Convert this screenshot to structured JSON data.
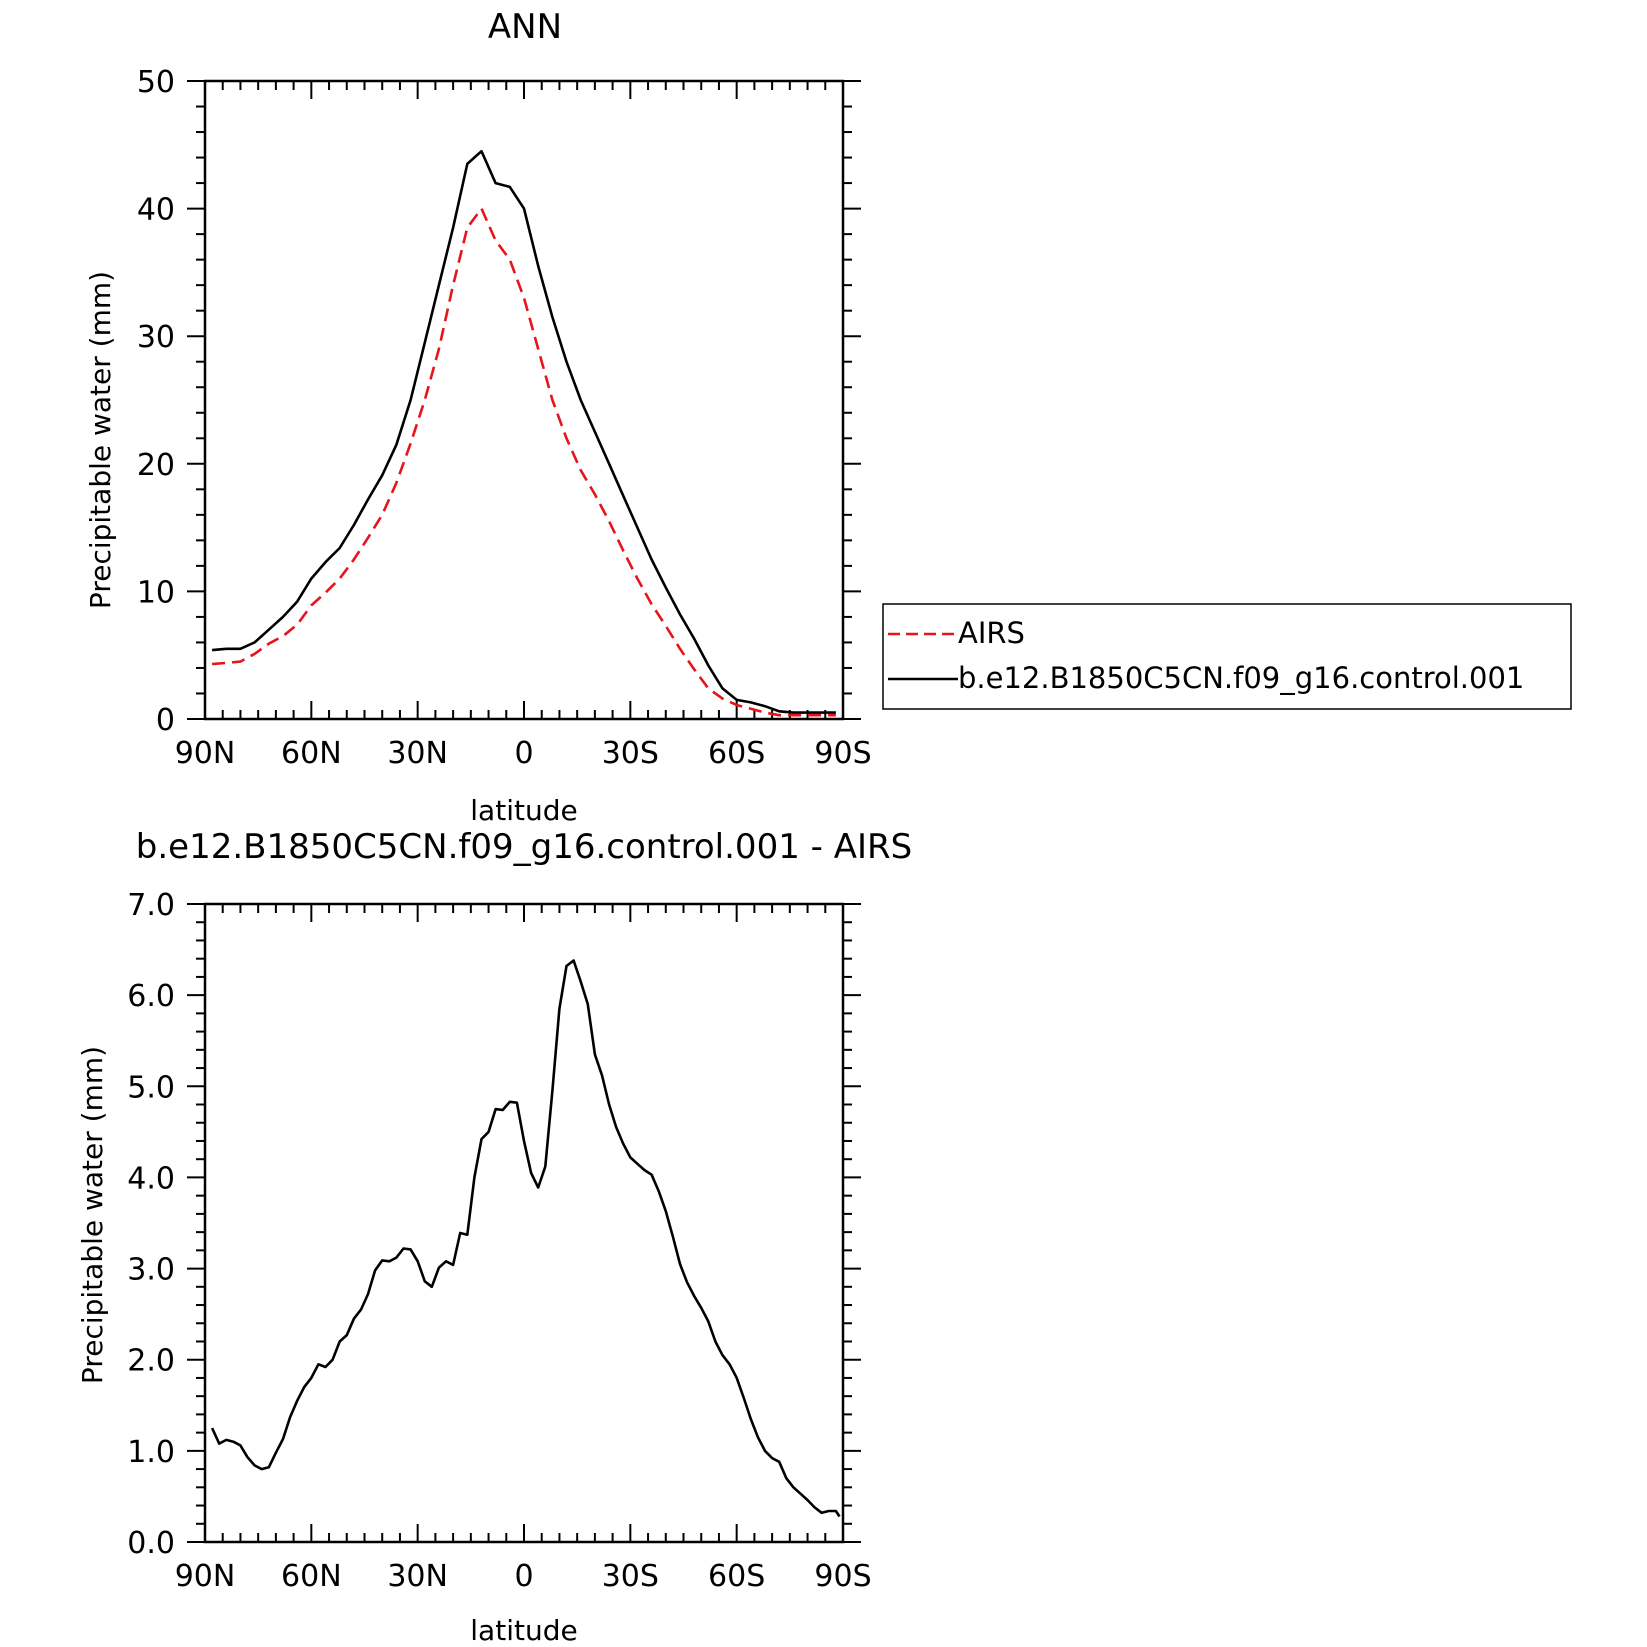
{
  "chart_data": [
    {
      "type": "line",
      "title": "ANN",
      "xlabel": "latitude",
      "ylabel": "Precipitable water (mm)",
      "xlim": [
        90,
        -90
      ],
      "ylim": [
        0,
        50
      ],
      "x_ticks": [
        {
          "value": 90,
          "label": "90N"
        },
        {
          "value": 60,
          "label": "60N"
        },
        {
          "value": 30,
          "label": "30N"
        },
        {
          "value": 0,
          "label": "0"
        },
        {
          "value": -30,
          "label": "30S"
        },
        {
          "value": -60,
          "label": "60S"
        },
        {
          "value": -90,
          "label": "90S"
        }
      ],
      "y_ticks": [
        {
          "value": 0,
          "label": "0"
        },
        {
          "value": 10,
          "label": "10"
        },
        {
          "value": 20,
          "label": "20"
        },
        {
          "value": 30,
          "label": "30"
        },
        {
          "value": 40,
          "label": "40"
        },
        {
          "value": 50,
          "label": "50"
        }
      ],
      "legend": {
        "placement": "right"
      },
      "x": [
        88,
        84,
        80,
        76,
        72,
        68,
        64,
        60,
        56,
        52,
        48,
        44,
        40,
        36,
        32,
        28,
        24,
        20,
        16,
        12,
        8,
        4,
        0,
        -4,
        -8,
        -12,
        -16,
        -20,
        -24,
        -28,
        -32,
        -36,
        -40,
        -44,
        -48,
        -52,
        -56,
        -60,
        -64,
        -68,
        -72,
        -76,
        -80,
        -84,
        -88
      ],
      "series": [
        {
          "name": "AIRS",
          "color": "#e8141c",
          "dash": "dashed",
          "values": [
            4.3,
            4.4,
            4.5,
            5.1,
            5.9,
            6.5,
            7.4,
            8.9,
            9.9,
            11.0,
            12.5,
            14.2,
            16.0,
            18.5,
            21.6,
            25.0,
            29.0,
            34.0,
            38.5,
            40.0,
            37.5,
            36.0,
            33.0,
            29.0,
            25.0,
            22.0,
            19.5,
            17.6,
            15.5,
            13.2,
            11.0,
            9.0,
            7.3,
            5.5,
            3.9,
            2.4,
            1.6,
            1.1,
            0.8,
            0.5,
            0.3,
            0.3,
            0.3,
            0.3,
            0.3
          ]
        },
        {
          "name": "b.e12.B1850C5CN.f09_g16.control.001",
          "color": "#000000",
          "dash": "solid",
          "values": [
            5.4,
            5.5,
            5.5,
            6.0,
            7.0,
            8.0,
            9.2,
            11.0,
            12.3,
            13.4,
            15.2,
            17.2,
            19.1,
            21.5,
            25.0,
            29.5,
            34.0,
            38.5,
            43.5,
            44.5,
            42.0,
            41.7,
            40.0,
            35.5,
            31.5,
            28.0,
            25.0,
            22.5,
            20.0,
            17.5,
            15.0,
            12.5,
            10.3,
            8.2,
            6.3,
            4.2,
            2.4,
            1.5,
            1.3,
            1.0,
            0.6,
            0.5,
            0.5,
            0.5,
            0.5
          ]
        }
      ]
    },
    {
      "type": "line",
      "title": "b.e12.B1850C5CN.f09_g16.control.001 - AIRS",
      "xlabel": "latitude",
      "ylabel": "Precipitable water (mm)",
      "xlim": [
        90,
        -90
      ],
      "ylim": [
        0,
        7
      ],
      "x_ticks": [
        {
          "value": 90,
          "label": "90N"
        },
        {
          "value": 60,
          "label": "60N"
        },
        {
          "value": 30,
          "label": "30N"
        },
        {
          "value": 0,
          "label": "0"
        },
        {
          "value": -30,
          "label": "30S"
        },
        {
          "value": -60,
          "label": "60S"
        },
        {
          "value": -90,
          "label": "90S"
        }
      ],
      "y_ticks": [
        {
          "value": 0,
          "label": "0.0"
        },
        {
          "value": 1,
          "label": "1.0"
        },
        {
          "value": 2,
          "label": "2.0"
        },
        {
          "value": 3,
          "label": "3.0"
        },
        {
          "value": 4,
          "label": "4.0"
        },
        {
          "value": 5,
          "label": "5.0"
        },
        {
          "value": 6,
          "label": "6.0"
        },
        {
          "value": 7,
          "label": "7.0"
        }
      ],
      "x": [
        88,
        86,
        84,
        82,
        80,
        78,
        76,
        74,
        72,
        70,
        68,
        66,
        64,
        62,
        60,
        58,
        56,
        54,
        52,
        50,
        48,
        46,
        44,
        42,
        40,
        38,
        36,
        34,
        32,
        30,
        28,
        26,
        24,
        22,
        20,
        18,
        16,
        14,
        12,
        10,
        8,
        6,
        4,
        2,
        0,
        -2,
        -4,
        -6,
        -8,
        -10,
        -12,
        -14,
        -16,
        -18,
        -20,
        -22,
        -24,
        -26,
        -28,
        -30,
        -32,
        -34,
        -36,
        -38,
        -40,
        -42,
        -44,
        -46,
        -48,
        -50,
        -52,
        -54,
        -56,
        -58,
        -60,
        -62,
        -64,
        -66,
        -68,
        -70,
        -72,
        -74,
        -76,
        -78,
        -80,
        -82,
        -84,
        -86,
        -88,
        -89
      ],
      "series": [
        {
          "name": "",
          "color": "#000000",
          "dash": "solid",
          "values": [
            1.25,
            1.08,
            1.12,
            1.1,
            1.06,
            0.93,
            0.84,
            0.8,
            0.82,
            0.98,
            1.13,
            1.37,
            1.55,
            1.7,
            1.8,
            1.95,
            1.92,
            2.0,
            2.2,
            2.27,
            2.45,
            2.55,
            2.72,
            2.98,
            3.09,
            3.08,
            3.12,
            3.22,
            3.21,
            3.08,
            2.86,
            2.8,
            3.01,
            3.08,
            3.04,
            3.39,
            3.37,
            4.0,
            4.42,
            4.5,
            4.75,
            4.74,
            4.83,
            4.82,
            4.4,
            4.05,
            3.89,
            4.12,
            4.95,
            5.85,
            6.32,
            6.38,
            6.15,
            5.9,
            5.35,
            5.12,
            4.8,
            4.55,
            4.37,
            4.22,
            4.15,
            4.08,
            4.03,
            3.85,
            3.63,
            3.35,
            3.05,
            2.85,
            2.7,
            2.57,
            2.42,
            2.2,
            2.05,
            1.95,
            1.8,
            1.58,
            1.35,
            1.15,
            1.0,
            0.92,
            0.88,
            0.7,
            0.6,
            0.53,
            0.46,
            0.38,
            0.32,
            0.34,
            0.34,
            0.28
          ]
        }
      ]
    }
  ]
}
